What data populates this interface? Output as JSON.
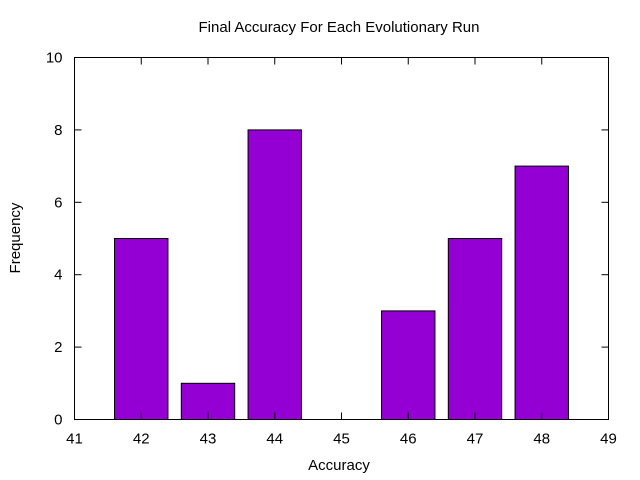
{
  "chart_data": {
    "type": "bar",
    "title": "Final Accuracy For Each Evolutionary Run",
    "xlabel": "Accuracy",
    "ylabel": "Frequency",
    "x": [
      42,
      43,
      44,
      45,
      46,
      47,
      48
    ],
    "values": [
      5,
      1,
      8,
      0,
      3,
      5,
      7
    ],
    "xlim": [
      41,
      49
    ],
    "ylim": [
      0,
      10
    ],
    "xticks": [
      41,
      42,
      43,
      44,
      45,
      46,
      47,
      48,
      49
    ],
    "yticks": [
      0,
      2,
      4,
      6,
      8,
      10
    ],
    "xtick_labels": [
      "41",
      "42",
      "43",
      "44",
      "45",
      "46",
      "47",
      "48",
      "49"
    ],
    "ytick_labels": [
      "0",
      "2",
      "4",
      "6",
      "8",
      "10"
    ],
    "bar_color": "#9400d3",
    "grid": false,
    "legend": "none"
  }
}
